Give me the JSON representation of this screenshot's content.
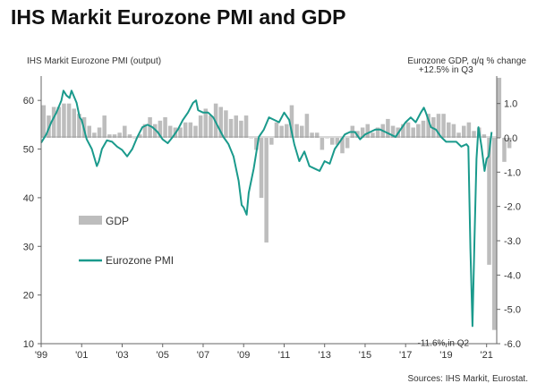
{
  "header": {
    "title": "IHS Markit Eurozone PMI and GDP"
  },
  "footer": {
    "source": "Sources: IHS Markit, Eurostat."
  },
  "chart_data": {
    "type": "bar+line",
    "title": "IHS Markit Eurozone PMI and GDP",
    "left_axis": {
      "label": "IHS Markit Eurozone PMI (output)",
      "range": [
        10,
        65
      ],
      "ticks": [
        10,
        20,
        30,
        40,
        50,
        60
      ]
    },
    "right_axis": {
      "label": "Eurozone GDP, q/q % change",
      "range": [
        -6.0,
        1.8
      ],
      "ticks": [
        1.0,
        0.0,
        -1.0,
        -2.0,
        -3.0,
        -4.0,
        -5.0,
        -6.0
      ],
      "tick_labels": [
        "1.0",
        "0.0",
        "-1.0",
        "-2.0",
        "-3.0",
        "-4.0",
        "-5.0",
        "-6.0"
      ]
    },
    "x_axis": {
      "range": [
        1999,
        2021.5
      ],
      "ticks": [
        1999,
        2001,
        2003,
        2005,
        2007,
        2009,
        2011,
        2013,
        2015,
        2017,
        2019,
        2021
      ],
      "tick_labels": [
        "'99",
        "'01",
        "'03",
        "'05",
        "'07",
        "'09",
        "'11",
        "'13",
        "'15",
        "'17",
        "'19",
        "'21"
      ]
    },
    "legend": {
      "placement": "center-left",
      "items": [
        {
          "name": "GDP",
          "color": "#bdbdbd",
          "kind": "bar"
        },
        {
          "name": "Eurozone PMI",
          "color": "#1a9a8c",
          "kind": "line"
        }
      ]
    },
    "annotations": [
      {
        "text": "+12.5% in Q3",
        "x": 2020.6,
        "y": 1.7
      },
      {
        "text": "-11.6% in Q2",
        "x": 2020.4,
        "y": -5.6
      }
    ],
    "gdp": {
      "start": 1999.0,
      "step": 0.25,
      "values": [
        0.95,
        0.65,
        0.9,
        0.9,
        1.0,
        1.0,
        0.85,
        0.7,
        0.6,
        0.35,
        0.15,
        0.3,
        0.65,
        0.1,
        0.1,
        0.15,
        0.35,
        0.1,
        0.0,
        0.1,
        0.4,
        0.6,
        0.4,
        0.5,
        0.6,
        0.35,
        0.3,
        0.3,
        0.45,
        0.45,
        0.35,
        0.65,
        0.85,
        0.65,
        1.0,
        0.9,
        0.8,
        0.55,
        0.65,
        0.5,
        0.65,
        0.0,
        -0.35,
        -1.75,
        -3.05,
        -0.2,
        0.45,
        0.35,
        0.4,
        0.95,
        0.4,
        0.35,
        0.7,
        0.15,
        0.15,
        -0.35,
        0.0,
        -0.2,
        -0.2,
        -0.45,
        -0.3,
        0.35,
        0.2,
        0.3,
        0.4,
        0.15,
        0.3,
        0.4,
        0.55,
        0.35,
        0.3,
        0.4,
        0.45,
        0.3,
        0.4,
        0.5,
        0.7,
        0.6,
        0.7,
        0.7,
        0.45,
        0.4,
        0.15,
        0.35,
        0.45,
        0.2,
        0.3,
        0.1,
        -3.7,
        -5.6,
        1.75,
        -0.7,
        -0.3
      ]
    },
    "pmi": {
      "points": [
        [
          1999.0,
          51.3
        ],
        [
          1999.25,
          53.0
        ],
        [
          1999.5,
          55.5
        ],
        [
          1999.75,
          57.5
        ],
        [
          2000.0,
          60.0
        ],
        [
          2000.1,
          62.0
        ],
        [
          2000.25,
          61.0
        ],
        [
          2000.4,
          60.5
        ],
        [
          2000.5,
          62.0
        ],
        [
          2000.75,
          59.5
        ],
        [
          2000.9,
          56.5
        ],
        [
          2001.0,
          56.0
        ],
        [
          2001.25,
          52.0
        ],
        [
          2001.5,
          50.0
        ],
        [
          2001.75,
          46.5
        ],
        [
          2001.85,
          47.5
        ],
        [
          2002.0,
          50.0
        ],
        [
          2002.25,
          51.8
        ],
        [
          2002.5,
          51.5
        ],
        [
          2002.75,
          50.5
        ],
        [
          2003.0,
          49.8
        ],
        [
          2003.25,
          48.5
        ],
        [
          2003.5,
          50.0
        ],
        [
          2003.75,
          52.5
        ],
        [
          2004.0,
          54.5
        ],
        [
          2004.25,
          55.0
        ],
        [
          2004.5,
          54.5
        ],
        [
          2004.75,
          53.5
        ],
        [
          2005.0,
          52.0
        ],
        [
          2005.25,
          51.2
        ],
        [
          2005.5,
          52.5
        ],
        [
          2005.75,
          54.0
        ],
        [
          2006.0,
          56.0
        ],
        [
          2006.25,
          57.5
        ],
        [
          2006.5,
          59.5
        ],
        [
          2006.65,
          60.0
        ],
        [
          2006.75,
          58.0
        ],
        [
          2007.0,
          57.5
        ],
        [
          2007.25,
          57.5
        ],
        [
          2007.5,
          56.5
        ],
        [
          2007.75,
          54.5
        ],
        [
          2008.0,
          52.5
        ],
        [
          2008.25,
          51.0
        ],
        [
          2008.5,
          48.5
        ],
        [
          2008.75,
          43.5
        ],
        [
          2008.9,
          38.5
        ],
        [
          2009.0,
          38.0
        ],
        [
          2009.15,
          36.5
        ],
        [
          2009.25,
          41.0
        ],
        [
          2009.5,
          46.0
        ],
        [
          2009.75,
          52.5
        ],
        [
          2010.0,
          54.0
        ],
        [
          2010.25,
          56.5
        ],
        [
          2010.5,
          56.0
        ],
        [
          2010.75,
          55.5
        ],
        [
          2011.0,
          57.5
        ],
        [
          2011.25,
          56.0
        ],
        [
          2011.5,
          51.0
        ],
        [
          2011.75,
          47.5
        ],
        [
          2012.0,
          49.5
        ],
        [
          2012.25,
          46.5
        ],
        [
          2012.5,
          46.0
        ],
        [
          2012.75,
          45.5
        ],
        [
          2013.0,
          47.5
        ],
        [
          2013.25,
          47.0
        ],
        [
          2013.5,
          50.0
        ],
        [
          2013.75,
          51.5
        ],
        [
          2014.0,
          53.0
        ],
        [
          2014.25,
          53.5
        ],
        [
          2014.5,
          53.5
        ],
        [
          2014.75,
          52.0
        ],
        [
          2015.0,
          53.0
        ],
        [
          2015.25,
          53.5
        ],
        [
          2015.5,
          54.0
        ],
        [
          2015.75,
          54.0
        ],
        [
          2016.0,
          53.5
        ],
        [
          2016.25,
          53.0
        ],
        [
          2016.5,
          52.5
        ],
        [
          2016.75,
          54.0
        ],
        [
          2017.0,
          55.5
        ],
        [
          2017.25,
          56.5
        ],
        [
          2017.5,
          55.5
        ],
        [
          2017.75,
          57.5
        ],
        [
          2017.9,
          58.5
        ],
        [
          2018.0,
          57.5
        ],
        [
          2018.25,
          54.5
        ],
        [
          2018.5,
          54.0
        ],
        [
          2018.75,
          52.5
        ],
        [
          2019.0,
          51.5
        ],
        [
          2019.25,
          51.5
        ],
        [
          2019.5,
          51.5
        ],
        [
          2019.75,
          50.5
        ],
        [
          2020.0,
          51.0
        ],
        [
          2020.1,
          50.5
        ],
        [
          2020.2,
          29.5
        ],
        [
          2020.3,
          13.6
        ],
        [
          2020.4,
          31.0
        ],
        [
          2020.5,
          48.0
        ],
        [
          2020.6,
          54.5
        ],
        [
          2020.75,
          50.5
        ],
        [
          2020.9,
          45.5
        ],
        [
          2021.0,
          48.0
        ],
        [
          2021.1,
          48.5
        ],
        [
          2021.25,
          53.5
        ]
      ]
    }
  }
}
